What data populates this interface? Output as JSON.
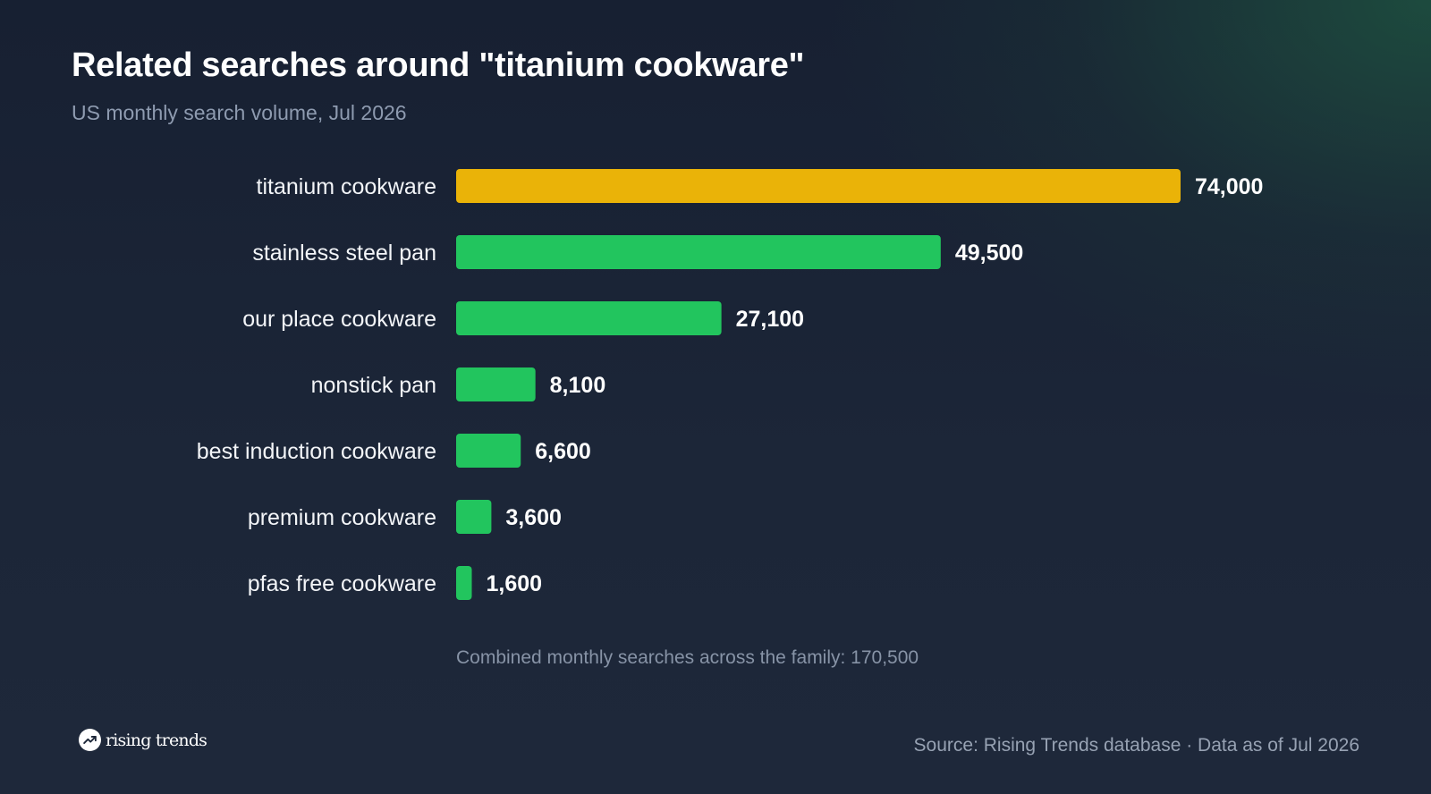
{
  "header": {
    "title": "Related searches around \"titanium cookware\"",
    "subtitle": "US monthly search volume, Jul 2026"
  },
  "chart_data": {
    "type": "bar",
    "orientation": "horizontal",
    "categories": [
      "titanium cookware",
      "stainless steel pan",
      "our place cookware",
      "nonstick pan",
      "best induction cookware",
      "premium cookware",
      "pfas free cookware"
    ],
    "values": [
      74000,
      49500,
      27100,
      8100,
      6600,
      3600,
      1600
    ],
    "value_labels": [
      "74,000",
      "49,500",
      "27,100",
      "8,100",
      "6,600",
      "3,600",
      "1,600"
    ],
    "highlight_index": 0,
    "colors": {
      "highlight": "#EAB308",
      "default": "#22C55E"
    },
    "xlim": [
      0,
      74000
    ],
    "grid": false,
    "legend": "none"
  },
  "footnote": "Combined monthly searches across the family: 170,500",
  "footer": {
    "logo_text": "rising trends",
    "logo_icon": "trending-up-icon",
    "source": "Source: Rising Trends database · Data as of Jul 2026"
  }
}
